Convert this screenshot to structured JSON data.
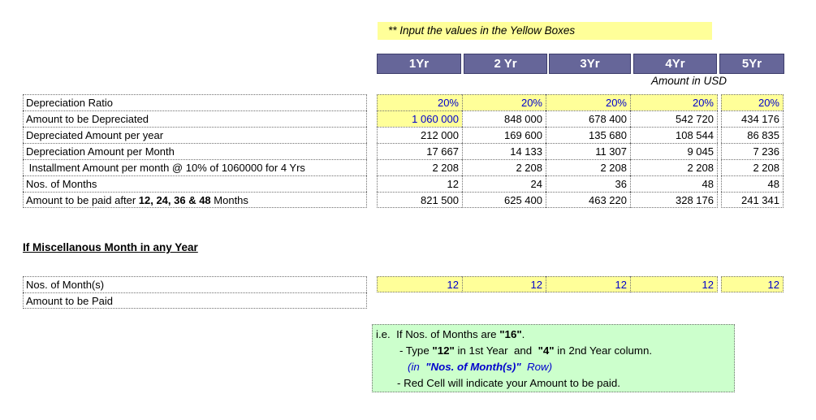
{
  "colors": {
    "input_yellow": "#FFFF99",
    "header_purple": "#666699",
    "blue_text": "#0000CC",
    "note_green": "#CCFFCC"
  },
  "banner": {
    "text": "** Input the values in the Yellow Boxes"
  },
  "columns": [
    "1Yr",
    "2 Yr",
    "3Yr",
    "4Yr",
    "5Yr"
  ],
  "amount_note": "Amount in USD",
  "depreciation_table": {
    "rows": [
      {
        "label": "Depreciation Ratio",
        "values": [
          "20%",
          "20%",
          "20%",
          "20%",
          "20%"
        ]
      },
      {
        "label": "Amount to be Depreciated",
        "values": [
          "1 060 000",
          "848 000",
          "678 400",
          "542 720",
          "434 176"
        ]
      },
      {
        "label": "Depreciated Amount per year",
        "values": [
          "212 000",
          "169 600",
          "135 680",
          "108 544",
          "86 835"
        ]
      },
      {
        "label": "Depreciation Amount per Month",
        "values": [
          "17 667",
          "14 133",
          "11 307",
          "9 045",
          "7 236"
        ]
      },
      {
        "label": " Installment Amount per month @ 10% of 1060000 for 4 Yrs",
        "values": [
          "2 208",
          "2 208",
          "2 208",
          "2 208",
          "2 208"
        ]
      },
      {
        "label": "Nos. of Months",
        "values": [
          "12",
          "24",
          "36",
          "48",
          "48"
        ]
      },
      {
        "label_pre": "Amount to be paid after ",
        "label_bold": "12, 24, 36 & 48",
        "label_post": " Months",
        "values": [
          "821 500",
          "625 400",
          "463 220",
          "328 176",
          "241 341"
        ]
      }
    ]
  },
  "misc_section": {
    "heading": "If Miscellanous Month in any Year",
    "month_row": {
      "label": "Nos. of Month(s)",
      "values": [
        "12",
        "12",
        "12",
        "12",
        "12"
      ]
    },
    "amount_row": {
      "label": "Amount to be Paid"
    }
  },
  "note_box": {
    "line1_pre": "i.e.  If Nos. of Months are ",
    "line1_bold": "\"16\"",
    "line1_post": ".",
    "line2_pre": "- Type ",
    "line2_bold1": "\"12\"",
    "line2_mid": " in 1st Year  and  ",
    "line2_bold2": "\"4\"",
    "line2_post": " in 2nd Year column.",
    "line3_pre": "(in  ",
    "line3_bold": "\"Nos. of Month(s)\"",
    "line3_post": "  Row)",
    "line4": "- Red Cell will indicate your Amount to be paid."
  }
}
